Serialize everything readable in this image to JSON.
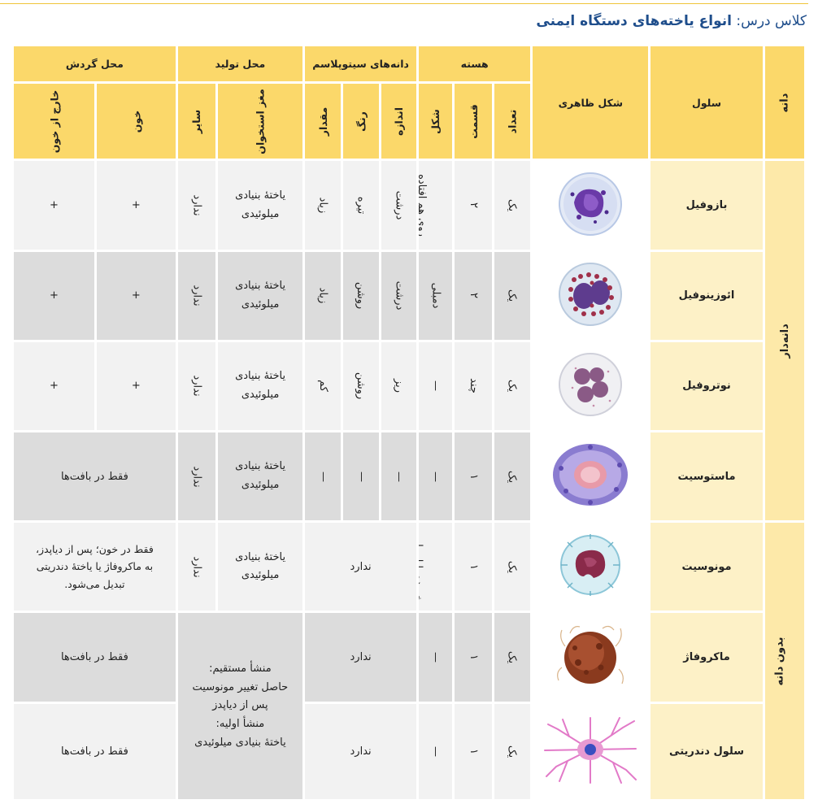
{
  "header": {
    "class_label": "کلاس درس:",
    "title": "انواع یاخته‌های دستگاه ایمنی"
  },
  "table": {
    "group_headers": {
      "granule": "دانه",
      "cell": "سلول",
      "appearance": "شکل ظاهری",
      "nucleus": "هسته",
      "cyto": "دانه‌های سیتوپلاسم",
      "production": "محل تولید",
      "circulation": "محل گردش"
    },
    "sub_headers": {
      "count": "تعداد",
      "parts": "قسمت",
      "shape": "شکل",
      "size": "اندازه",
      "color": "رنگ",
      "amount": "مقدار",
      "marrow": "مغز استخوان",
      "other": "سایر",
      "blood": "خون",
      "outside": "خارج از خون"
    },
    "group_labels": {
      "granular": "دانه‌دار",
      "agranular": "بدون دانه"
    },
    "rows": [
      {
        "name": "بازوفیل",
        "count": "یک",
        "parts": "۲",
        "shape": "روی هم افتاده",
        "size": "درشت",
        "color": "تیره",
        "amount": "زیاد",
        "marrow_1": "یاختهٔ بنیادی",
        "marrow_2": "میلوئیدی",
        "other": "ندارد",
        "blood": "+",
        "outside": "+"
      },
      {
        "name": "ائوزینوفیل",
        "count": "یک",
        "parts": "۲",
        "shape": "دمبلی",
        "size": "درشت",
        "color": "روشن",
        "amount": "زیاد",
        "marrow_1": "یاختهٔ بنیادی",
        "marrow_2": "میلوئیدی",
        "other": "ندارد",
        "blood": "+",
        "outside": "+"
      },
      {
        "name": "نوتروفیل",
        "count": "یک",
        "parts": "چند",
        "shape": "—",
        "size": "ریز",
        "color": "روشن",
        "amount": "کم",
        "marrow_1": "یاختهٔ بنیادی",
        "marrow_2": "میلوئیدی",
        "other": "ندارد",
        "blood": "+",
        "outside": "+"
      },
      {
        "name": "ماستوسیت",
        "count": "یک",
        "parts": "۱",
        "shape": "—",
        "size": "—",
        "color": "—",
        "amount": "—",
        "marrow_1": "یاختهٔ بنیادی",
        "marrow_2": "میلوئیدی",
        "other": "ندارد",
        "circulation": "فقط در بافت‌ها"
      },
      {
        "name": "مونوسیت",
        "count": "یک",
        "parts": "۱",
        "shape": "خمیده یا لوبیایی",
        "cyto": "ندارد",
        "marrow_1": "یاختهٔ بنیادی",
        "marrow_2": "میلوئیدی",
        "other": "ندارد",
        "circ_1": "فقط در خون؛ پس از دیاپدز،",
        "circ_2": "به ماکروفاژ یا یاختهٔ دندریتی",
        "circ_3": "تبدیل می‌شود."
      },
      {
        "name": "ماکروفاژ",
        "count": "یک",
        "parts": "۱",
        "shape": "—",
        "cyto": "ندارد",
        "circulation": "فقط در بافت‌ها"
      },
      {
        "name": "سلول دندریتی",
        "count": "یک",
        "parts": "۱",
        "shape": "—",
        "cyto": "ندارد",
        "circulation": "فقط در بافت‌ها"
      }
    ],
    "shared_production": {
      "line1": "منشأ مستقیم:",
      "line2": "حاصل تغییر مونوسیت",
      "line3": "پس از دیاپدز",
      "line4": "منشأ اولیه:",
      "line5": "یاختهٔ بنیادی میلوئیدی"
    }
  },
  "colors": {
    "header": "#fbd86a",
    "side_light": "#fde9a9",
    "name_bg": "#fdf1c7",
    "row_light": "#f2f2f2",
    "row_dark": "#dcdcdc",
    "title_blue": "#1f4e8c"
  },
  "images": {
    "basophil": "basophil-cell-image",
    "eosinophil": "eosinophil-cell-image",
    "neutrophil": "neutrophil-cell-image",
    "mastocyte": "mastocyte-cell-image",
    "monocyte": "monocyte-cell-image",
    "macrophage": "macrophage-cell-image",
    "dendritic": "dendritic-cell-image"
  }
}
